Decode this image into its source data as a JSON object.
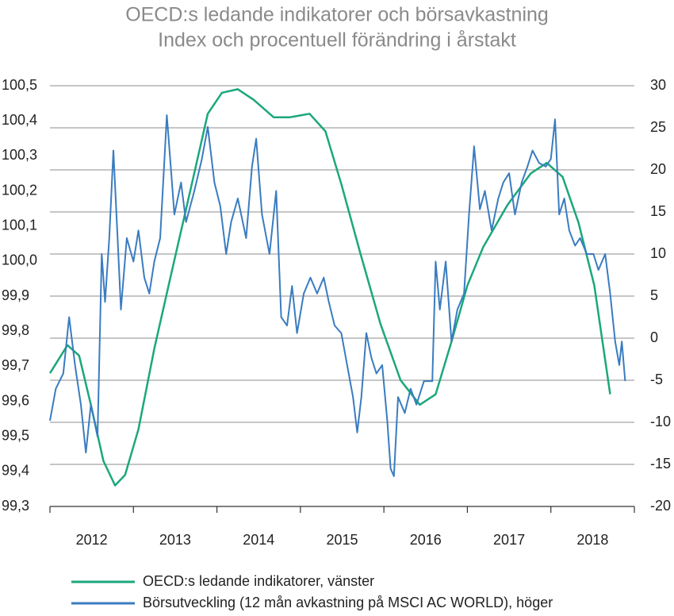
{
  "chart_data": {
    "type": "line",
    "title": "OECD:s ledande indikatorer och börsavkastning",
    "subtitle": "Index och procentuell förändring i årstakt",
    "categories": [
      "2012",
      "2013",
      "2014",
      "2015",
      "2016",
      "2017",
      "2018"
    ],
    "xlim": [
      2012,
      2019
    ],
    "xticks": [
      2012,
      2013,
      2014,
      2015,
      2016,
      2017,
      2018,
      2019
    ],
    "ylim": [
      99.3,
      100.5
    ],
    "yticks": [
      {
        "value": 99.3,
        "label": "99,3"
      },
      {
        "value": 99.4,
        "label": "99,4"
      },
      {
        "value": 99.5,
        "label": "99,5"
      },
      {
        "value": 99.6,
        "label": "99,6"
      },
      {
        "value": 99.7,
        "label": "99,7"
      },
      {
        "value": 99.8,
        "label": "99,8"
      },
      {
        "value": 99.9,
        "label": "99,9"
      },
      {
        "value": 100.0,
        "label": "100,0"
      },
      {
        "value": 100.1,
        "label": "100,1"
      },
      {
        "value": 100.2,
        "label": "100,2"
      },
      {
        "value": 100.3,
        "label": "100,3"
      },
      {
        "value": 100.4,
        "label": "100,4"
      },
      {
        "value": 100.5,
        "label": "100,5"
      }
    ],
    "y2lim": [
      -20,
      30
    ],
    "y2ticks": [
      -20,
      -15,
      -10,
      -5,
      0,
      5,
      10,
      15,
      20,
      25,
      30
    ],
    "grid": true,
    "series": [
      {
        "name": "OECD:s ledande indikatorer, vänster",
        "color": "#1ba77c",
        "axis": "y",
        "x": [
          2012.0,
          2012.21,
          2012.35,
          2012.49,
          2012.64,
          2012.78,
          2012.9,
          2013.06,
          2013.25,
          2013.44,
          2013.68,
          2013.89,
          2014.06,
          2014.25,
          2014.44,
          2014.68,
          2014.87,
          2015.11,
          2015.3,
          2015.49,
          2015.72,
          2015.96,
          2016.2,
          2016.43,
          2016.62,
          2016.81,
          2017.0,
          2017.19,
          2017.48,
          2017.76,
          2017.95,
          2018.14,
          2018.33,
          2018.52,
          2018.71
        ],
        "values": [
          99.68,
          99.76,
          99.73,
          99.59,
          99.43,
          99.36,
          99.39,
          99.52,
          99.75,
          99.95,
          100.2,
          100.42,
          100.48,
          100.49,
          100.46,
          100.41,
          100.41,
          100.42,
          100.37,
          100.22,
          100.02,
          99.82,
          99.66,
          99.59,
          99.62,
          99.77,
          99.93,
          100.04,
          100.16,
          100.25,
          100.28,
          100.24,
          100.11,
          99.93,
          99.62
        ]
      },
      {
        "name": "Börsutveckling (12 mån avkastning på MSCI AC WORLD), höger",
        "color": "#3a7cc0",
        "axis": "y2",
        "x": [
          2012.0,
          2012.07,
          2012.16,
          2012.23,
          2012.3,
          2012.37,
          2012.43,
          2012.49,
          2012.57,
          2012.62,
          2012.66,
          2012.71,
          2012.76,
          2012.81,
          2012.85,
          2012.92,
          2013.0,
          2013.06,
          2013.13,
          2013.19,
          2013.25,
          2013.32,
          2013.4,
          2013.44,
          2013.49,
          2013.57,
          2013.63,
          2013.73,
          2013.82,
          2013.89,
          2013.97,
          2014.04,
          2014.11,
          2014.17,
          2014.25,
          2014.35,
          2014.42,
          2014.47,
          2014.54,
          2014.63,
          2014.71,
          2014.77,
          2014.84,
          2014.9,
          2014.96,
          2015.04,
          2015.12,
          2015.2,
          2015.28,
          2015.34,
          2015.41,
          2015.49,
          2015.56,
          2015.63,
          2015.68,
          2015.73,
          2015.79,
          2015.85,
          2015.91,
          2015.98,
          2016.04,
          2016.08,
          2016.12,
          2016.17,
          2016.25,
          2016.32,
          2016.39,
          2016.48,
          2016.58,
          2016.62,
          2016.67,
          2016.74,
          2016.81,
          2016.88,
          2016.96,
          2017.02,
          2017.08,
          2017.15,
          2017.21,
          2017.29,
          2017.37,
          2017.43,
          2017.5,
          2017.57,
          2017.65,
          2017.72,
          2017.78,
          2017.86,
          2017.94,
          2018.0,
          2018.05,
          2018.1,
          2018.16,
          2018.22,
          2018.29,
          2018.35,
          2018.43,
          2018.51,
          2018.57,
          2018.65,
          2018.71,
          2018.77,
          2018.82,
          2018.85,
          2018.89
        ],
        "values": [
          -9.8,
          -6,
          -4.2,
          2.5,
          -3.2,
          -7.9,
          -13.6,
          -7.9,
          -11.7,
          10,
          4.3,
          11.9,
          22.3,
          11.9,
          3.4,
          11.9,
          9.1,
          12.8,
          7.2,
          5.3,
          9.1,
          11.9,
          26.5,
          21.3,
          14.7,
          18.5,
          13.8,
          17.5,
          21.3,
          25.1,
          18.5,
          15.7,
          10,
          13.8,
          16.6,
          11.9,
          20.4,
          23.7,
          14.7,
          10,
          17.5,
          2.5,
          1.5,
          6.2,
          0.6,
          5.3,
          7.2,
          5.3,
          7.2,
          4.3,
          1.5,
          0.6,
          -3.2,
          -7,
          -11.2,
          -7,
          0.6,
          -2.3,
          -4.2,
          -3.2,
          -9.8,
          -15.5,
          -16.4,
          -7,
          -8.9,
          -6,
          -7.9,
          -5.1,
          -5.1,
          9.1,
          3.4,
          9.1,
          -0.4,
          3.4,
          5.3,
          14.7,
          22.8,
          15.3,
          17.5,
          12.8,
          16.6,
          18.5,
          19.6,
          14.7,
          18.5,
          20.4,
          22.3,
          20.8,
          20.4,
          21.3,
          26,
          14.7,
          16.6,
          12.8,
          11,
          11.9,
          10,
          10,
          8.1,
          10,
          5.3,
          -0.4,
          -3.2,
          -0.4,
          -5.1
        ]
      }
    ]
  }
}
